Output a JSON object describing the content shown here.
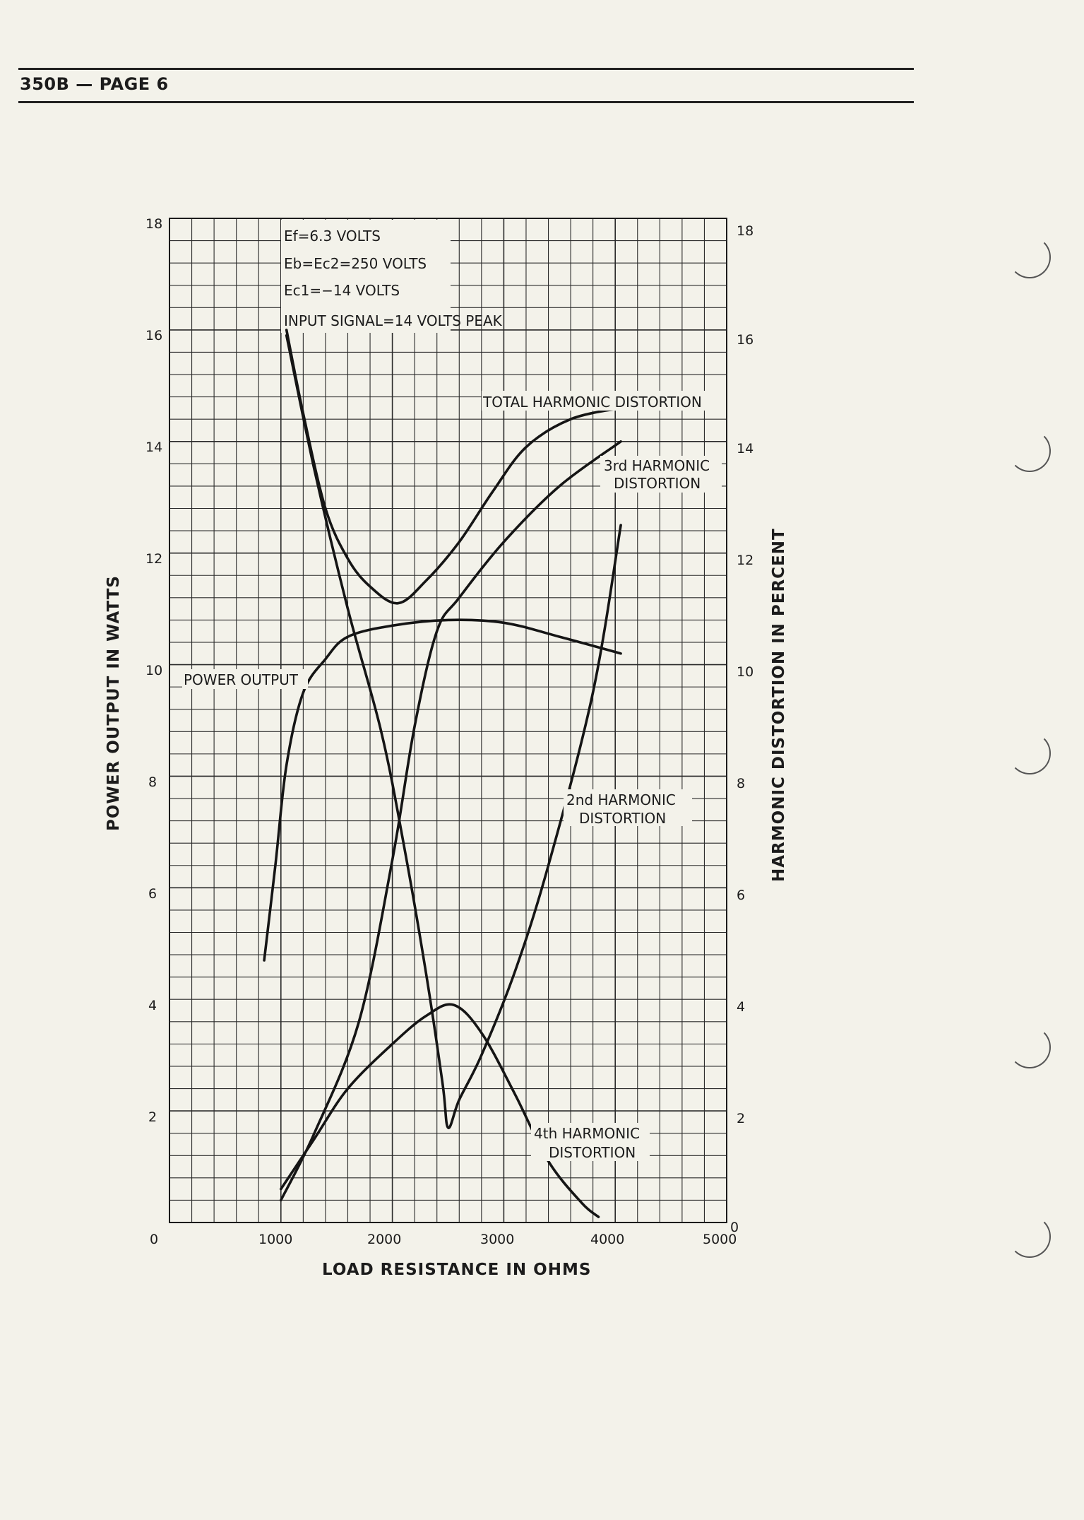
{
  "header": {
    "label": "350B — PAGE 6"
  },
  "chart_data": {
    "type": "line",
    "xlabel": "LOAD RESISTANCE IN OHMS",
    "ylabel": "POWER OUTPUT IN WATTS",
    "y2label": "HARMONIC DISTORTION IN PERCENT",
    "xlim": [
      0,
      5000
    ],
    "ylim": [
      0,
      18
    ],
    "y2lim": [
      0,
      18
    ],
    "grid": true,
    "x_ticks": [
      "0",
      "1000",
      "2000",
      "3000",
      "4000",
      "5000"
    ],
    "y_ticks": [
      "18",
      "16",
      "14",
      "12",
      "10",
      "8",
      "6",
      "4",
      "2"
    ],
    "y2_ticks": [
      "18",
      "16",
      "14",
      "12",
      "10",
      "8",
      "6",
      "4",
      "2",
      "0"
    ],
    "conditions": [
      "Ef=6.3 VOLTS",
      "Eb=Ec2=250 VOLTS",
      "Ec1=−14 VOLTS",
      "INPUT SIGNAL=14 VOLTS PEAK"
    ],
    "series": [
      {
        "name": "POWER OUTPUT",
        "axis": "left",
        "x": [
          850,
          950,
          1050,
          1200,
          1400,
          1600,
          2000,
          2500,
          3000,
          3500,
          4050
        ],
        "y": [
          4.7,
          6.4,
          8.2,
          9.5,
          10.1,
          10.5,
          10.7,
          10.8,
          10.75,
          10.5,
          10.2
        ]
      },
      {
        "name": "TOTAL HARMONIC DISTORTION",
        "axis": "right",
        "x": [
          1050,
          1200,
          1400,
          1600,
          1800,
          2050,
          2300,
          2600,
          2900,
          3200,
          3600,
          4050
        ],
        "y": [
          16.0,
          14.5,
          12.8,
          11.9,
          11.4,
          11.1,
          11.5,
          12.2,
          13.1,
          13.9,
          14.4,
          14.6
        ]
      },
      {
        "name": "3rd HARMONIC DISTORTION",
        "axis": "right",
        "x": [
          1000,
          1300,
          1700,
          2000,
          2200,
          2400,
          2600,
          3000,
          3500,
          4050
        ],
        "y": [
          0.4,
          1.6,
          3.6,
          6.5,
          8.9,
          10.6,
          11.2,
          12.2,
          13.2,
          14.0
        ]
      },
      {
        "name": "2nd HARMONIC DISTORTION",
        "axis": "right",
        "x": [
          1050,
          1300,
          1600,
          1900,
          2100,
          2300,
          2450,
          2500,
          2600,
          2800,
          3100,
          3400,
          3800,
          4050
        ],
        "y": [
          15.9,
          13.5,
          11.0,
          8.8,
          6.8,
          4.5,
          2.5,
          1.7,
          2.2,
          3.0,
          4.5,
          6.4,
          9.5,
          12.5
        ]
      },
      {
        "name": "4th HARMONIC DISTORTION",
        "axis": "right",
        "x": [
          1000,
          1300,
          1600,
          2000,
          2300,
          2550,
          2800,
          3100,
          3400,
          3700,
          3850
        ],
        "y": [
          0.6,
          1.5,
          2.4,
          3.2,
          3.7,
          3.9,
          3.4,
          2.3,
          1.1,
          0.35,
          0.1
        ]
      }
    ],
    "curve_labels": {
      "power": "POWER OUTPUT",
      "thd": "TOTAL HARMONIC DISTORTION",
      "h3_line1": "3rd HARMONIC",
      "h3_line2": "DISTORTION",
      "h2_line1": "2nd HARMONIC",
      "h2_line2": "DISTORTION",
      "h4_line1": "4th HARMONIC",
      "h4_line2": "DISTORTION"
    },
    "y2_zero_label": "0"
  }
}
